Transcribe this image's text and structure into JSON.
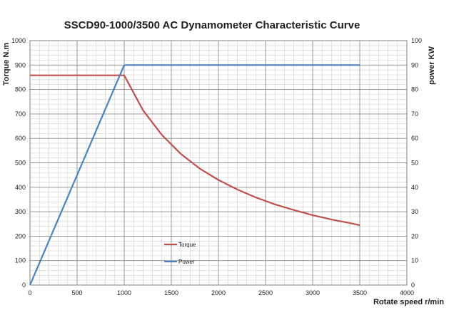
{
  "chart_data": {
    "type": "line",
    "title": "SSCD90-1000/3500 AC Dynamometer Characteristic Curve",
    "xlabel": "Rotate speed r/min",
    "ylabel_left": "Torque N.m",
    "ylabel_right": "power KW",
    "xlim": [
      0,
      4000
    ],
    "ylim_left": [
      0,
      1000
    ],
    "ylim_right": [
      0,
      100
    ],
    "x_ticks": [
      "0",
      "500",
      "1000",
      "1500",
      "2000",
      "2500",
      "3000",
      "3500",
      "4000"
    ],
    "y_left_ticks": [
      "0",
      "100",
      "200",
      "300",
      "400",
      "500",
      "600",
      "700",
      "800",
      "900",
      "1000"
    ],
    "y_right_ticks": [
      "0",
      "10",
      "20",
      "30",
      "40",
      "50",
      "60",
      "70",
      "80",
      "90",
      "100"
    ],
    "grid": true,
    "legend_position": "inside-lower-center",
    "series": [
      {
        "name": "Torque",
        "axis": "left",
        "color": "#c0504d",
        "x": [
          0,
          1000,
          1200,
          1400,
          1600,
          1800,
          2000,
          2200,
          2400,
          2600,
          2800,
          3000,
          3200,
          3400,
          3500
        ],
        "y": [
          858,
          858,
          715,
          614,
          537,
          477,
          430,
          391,
          358,
          330,
          307,
          286,
          268,
          253,
          245
        ]
      },
      {
        "name": "Power",
        "axis": "right",
        "color": "#4f81bd",
        "x": [
          0,
          1000,
          3500
        ],
        "y": [
          0,
          90,
          90
        ]
      }
    ]
  }
}
